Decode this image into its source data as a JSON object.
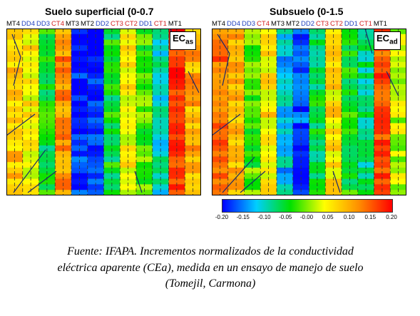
{
  "chart_data": {
    "type": "heatmap",
    "panels": [
      {
        "title": "Suelo  superficial  (0-0.7",
        "badge_main": "EC",
        "badge_sub": "as",
        "plot_labels": [
          {
            "text": "MT4",
            "color": "#000000"
          },
          {
            "text": "DD4",
            "color": "#1f3fbf"
          },
          {
            "text": "DD3",
            "color": "#1f3fbf"
          },
          {
            "text": "CT4",
            "color": "#d42020"
          },
          {
            "text": "MT3",
            "color": "#000000"
          },
          {
            "text": "MT2",
            "color": "#000000"
          },
          {
            "text": "DD2",
            "color": "#1f3fbf"
          },
          {
            "text": "CT3",
            "color": "#d42020"
          },
          {
            "text": "CT2",
            "color": "#d42020"
          },
          {
            "text": "DD1",
            "color": "#1f3fbf"
          },
          {
            "text": "CT1",
            "color": "#d42020"
          },
          {
            "text": "MT1",
            "color": "#000000"
          }
        ],
        "strip_values": [
          0.08,
          0.05,
          -0.05,
          0.12,
          -0.18,
          -0.19,
          -0.05,
          0.05,
          -0.02,
          -0.1,
          0.18,
          0.1
        ]
      },
      {
        "title": "Subsuelo   (0-1.5",
        "badge_main": "EC",
        "badge_sub": "ad",
        "plot_labels": [
          {
            "text": "MT4",
            "color": "#000000"
          },
          {
            "text": "DD4",
            "color": "#1f3fbf"
          },
          {
            "text": "DD3",
            "color": "#1f3fbf"
          },
          {
            "text": "CT4",
            "color": "#d42020"
          },
          {
            "text": "MT3",
            "color": "#000000"
          },
          {
            "text": "MT2",
            "color": "#000000"
          },
          {
            "text": "DD2",
            "color": "#1f3fbf"
          },
          {
            "text": "CT3",
            "color": "#d42020"
          },
          {
            "text": "CT2",
            "color": "#d42020"
          },
          {
            "text": "DD1",
            "color": "#1f3fbf"
          },
          {
            "text": "CT1",
            "color": "#d42020"
          },
          {
            "text": "MT1",
            "color": "#000000"
          }
        ],
        "strip_values": [
          0.14,
          0.1,
          -0.02,
          0.06,
          -0.12,
          -0.17,
          -0.06,
          0.06,
          -0.04,
          -0.08,
          0.16,
          0.02
        ]
      }
    ],
    "colorbar": {
      "min": -0.2,
      "max": 0.2,
      "tick_labels": [
        "-0.20",
        "-0.15",
        "-0.10",
        "-0.05",
        "-0.00",
        "0.05",
        "0.10",
        "0.15",
        "0.20"
      ],
      "colors": [
        "#0000ff",
        "#00cfff",
        "#00e000",
        "#ffff00",
        "#ff9000",
        "#ff0000"
      ]
    }
  },
  "caption": {
    "line1": "Fuente: IFAPA.  Incrementos normalizados de la conductividad",
    "line2": "eléctrica aparente (CEa), medida en un ensayo de manejo de suelo",
    "line3": "(Tomejil, Carmona)"
  }
}
